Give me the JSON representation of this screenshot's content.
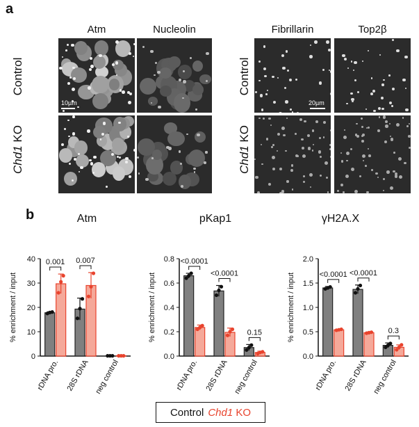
{
  "panel_a": {
    "letter": "a",
    "left_columns": [
      "Atm",
      "Nucleolin"
    ],
    "right_columns": [
      "Fibrillarin",
      "Top2β"
    ],
    "rows": [
      "Control",
      "Chd1",
      " KO"
    ],
    "scale_left": "10µm",
    "scale_right": "20µm"
  },
  "panel_b": {
    "letter": "b"
  },
  "legend": {
    "control": "Control",
    "ko_gene": "Chd1",
    "ko_suffix": " KO"
  },
  "colors": {
    "control": "#808080",
    "ko": "#e8432d",
    "ko_fill": "#f5a99a"
  },
  "chart_data": [
    {
      "type": "bar",
      "title": "Atm",
      "ylabel": "% enrichment / input",
      "categories": [
        "rDNA pro.",
        "28S rDNA",
        "neg control"
      ],
      "ylim": [
        0,
        40
      ],
      "yticks": [
        "0",
        "10",
        "20",
        "30",
        "40"
      ],
      "yticks_values": [
        0,
        10,
        20,
        30,
        40
      ],
      "series": [
        {
          "values": [
            17.8,
            19.3,
            0.1
          ],
          "errors": [
            0.4,
            4.5,
            0.05
          ],
          "points": [
            [
              17.5,
              17.9,
              18.1
            ],
            [
              15.5,
              19.5,
              23.5
            ],
            [
              0.1,
              0.1,
              0.1
            ]
          ]
        },
        {
          "values": [
            29.7,
            29.0,
            0.15
          ],
          "errors": [
            4.0,
            5.3,
            0.05
          ],
          "points": [
            [
              26.0,
              30.5,
              33.0
            ],
            [
              24.5,
              28.5,
              34.0
            ],
            [
              0.1,
              0.1,
              0.1
            ]
          ]
        }
      ],
      "pvalues": [
        "0.001",
        "0.007"
      ]
    },
    {
      "type": "bar",
      "title": "pKap1",
      "ylabel": "% enrichment / input",
      "categories": [
        "rDNA pro.",
        "28S rDNA",
        "neg control"
      ],
      "ylim": [
        0,
        0.8
      ],
      "yticks": [
        "0.0",
        "0.2",
        "0.4",
        "0.6",
        "0.8"
      ],
      "yticks_values": [
        0,
        0.2,
        0.4,
        0.6,
        0.8
      ],
      "series": [
        {
          "values": [
            0.66,
            0.535,
            0.07
          ],
          "errors": [
            0.02,
            0.045,
            0.025
          ],
          "points": [
            [
              0.64,
              0.66,
              0.68
            ],
            [
              0.5,
              0.54,
              0.57
            ],
            [
              0.05,
              0.07,
              0.09
            ]
          ]
        },
        {
          "values": [
            0.235,
            0.195,
            0.03
          ],
          "errors": [
            0.02,
            0.035,
            0.01
          ],
          "points": [
            [
              0.22,
              0.235,
              0.25
            ],
            [
              0.17,
              0.2,
              0.22
            ],
            [
              0.02,
              0.03,
              0.035
            ]
          ]
        }
      ],
      "pvalues": [
        "<0.0001",
        "<0.0001",
        "0.15"
      ]
    },
    {
      "type": "bar",
      "title": "γH2A.X",
      "ylabel": "% enrichment / input",
      "categories": [
        "rDNA pro.",
        "28S rDNA",
        "neg control"
      ],
      "ylim": [
        0,
        2.0
      ],
      "yticks": [
        "0.0",
        "0.5",
        "1.0",
        "1.5",
        "2.0"
      ],
      "yticks_values": [
        0,
        0.5,
        1.0,
        1.5,
        2.0
      ],
      "series": [
        {
          "values": [
            1.4,
            1.37,
            0.22
          ],
          "errors": [
            0.03,
            0.09,
            0.05
          ],
          "points": [
            [
              1.38,
              1.4,
              1.42
            ],
            [
              1.3,
              1.38,
              1.45
            ],
            [
              0.18,
              0.22,
              0.26
            ]
          ]
        },
        {
          "values": [
            0.54,
            0.48,
            0.18
          ],
          "errors": [
            0.01,
            0.015,
            0.05
          ],
          "points": [
            [
              0.53,
              0.54,
              0.55
            ],
            [
              0.47,
              0.48,
              0.49
            ],
            [
              0.13,
              0.18,
              0.23
            ]
          ]
        }
      ],
      "pvalues": [
        "<0.0001",
        "<0.0001",
        "0.3"
      ]
    }
  ]
}
